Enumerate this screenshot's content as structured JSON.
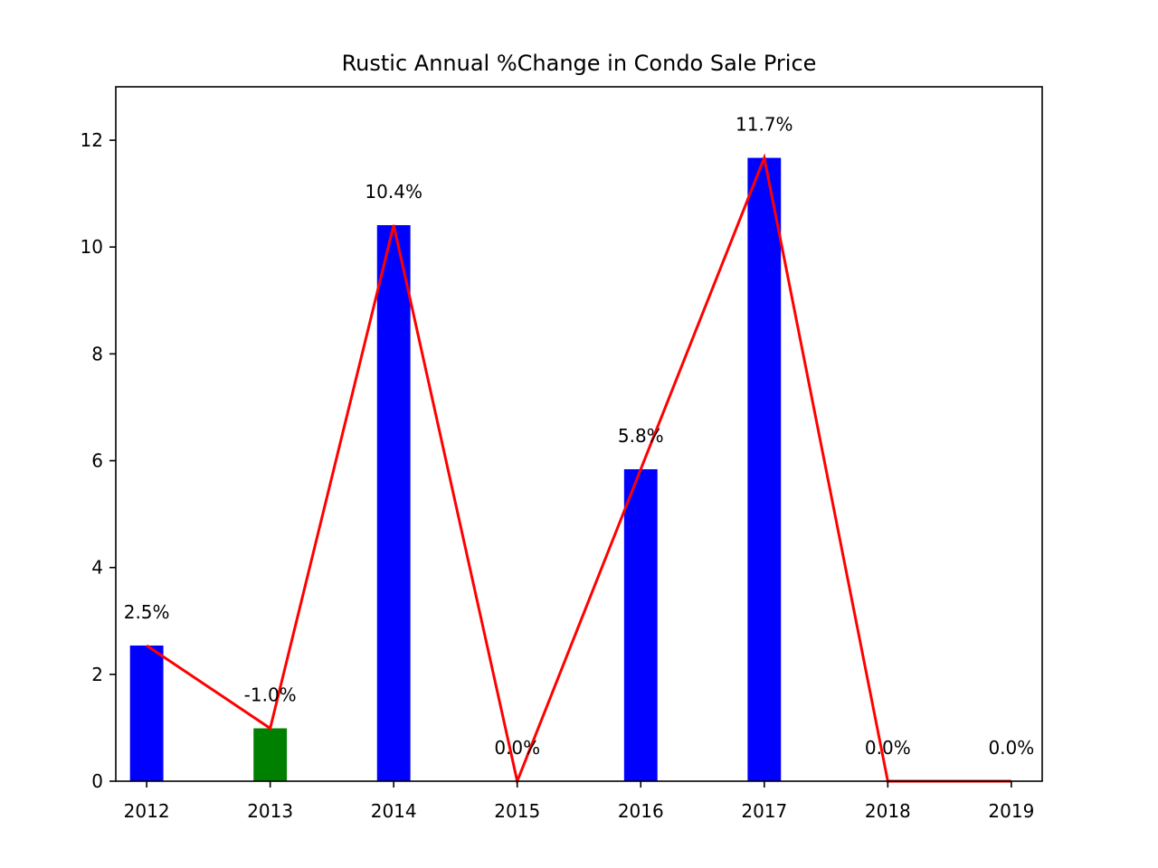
{
  "chart_data": {
    "type": "bar",
    "title": "Rustic Annual %Change in Condo Sale Price",
    "xlabel": "",
    "ylabel": "",
    "categories": [
      "2012",
      "2013",
      "2014",
      "2015",
      "2016",
      "2017",
      "2018",
      "2019"
    ],
    "values": [
      2.54,
      -0.99,
      10.41,
      0.0,
      5.84,
      11.67,
      0.0,
      0.0
    ],
    "bar_heights": [
      2.54,
      0.99,
      10.41,
      0.0,
      5.84,
      11.67,
      0.0,
      0.0
    ],
    "data_labels": [
      "2.5%",
      "-1.0%",
      "10.4%",
      "0.0%",
      "5.8%",
      "11.7%",
      "0.0%",
      "0.0%"
    ],
    "line_series": [
      2.54,
      0.99,
      10.41,
      0.0,
      5.84,
      11.67,
      0.0,
      0.0
    ],
    "ylim": [
      0,
      13
    ],
    "yticks": [
      0,
      2,
      4,
      6,
      8,
      10,
      12
    ],
    "grid": false,
    "legend": "none",
    "colors": {
      "positive_bar": "#0000ff",
      "negative_bar": "#008000",
      "line": "#ff0000",
      "axes": "#000000"
    }
  }
}
